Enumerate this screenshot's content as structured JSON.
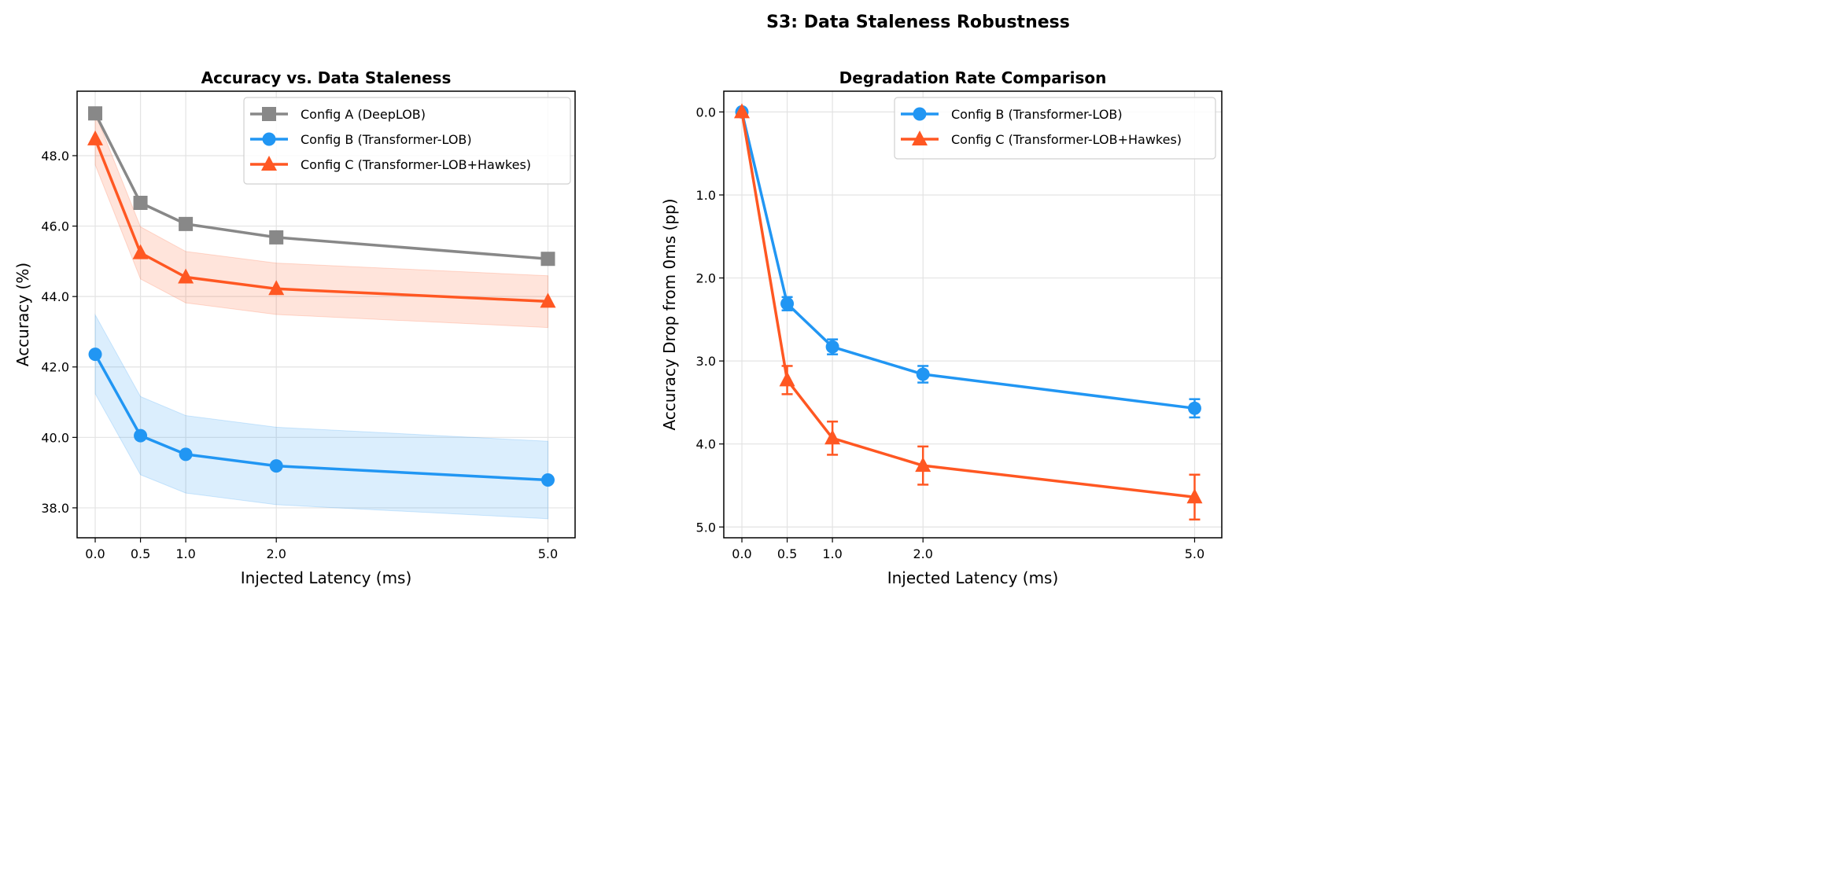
{
  "suptitle": "S3: Data Staleness Robustness",
  "chart_data": [
    {
      "type": "line",
      "title": "Accuracy vs. Data Staleness",
      "xlabel": "Injected Latency (ms)",
      "ylabel": "Accuracy (%)",
      "x": [
        0.0,
        0.5,
        1.0,
        2.0,
        5.0
      ],
      "xticks": [
        "0.0",
        "0.5",
        "1.0",
        "2.0",
        "5.0"
      ],
      "yticks": [
        "38.0",
        "40.0",
        "42.0",
        "44.0",
        "46.0",
        "48.0"
      ],
      "xlim": [
        -0.2,
        5.3
      ],
      "ylim": [
        37.15,
        49.83
      ],
      "grid": true,
      "legend_position": "upper-right",
      "series": [
        {
          "name": "Config A (DeepLOB)",
          "color": "#888888",
          "marker": "square",
          "values": [
            49.2,
            46.66,
            46.06,
            45.68,
            45.07
          ]
        },
        {
          "name": "Config B (Transformer-LOB)",
          "color": "#2196F3",
          "marker": "circle",
          "values": [
            42.36,
            40.05,
            39.52,
            39.19,
            38.79
          ],
          "band_lower": [
            41.24,
            38.94,
            38.42,
            38.09,
            37.69
          ],
          "band_upper": [
            43.48,
            41.16,
            40.62,
            40.29,
            39.89
          ]
        },
        {
          "name": "Config C (Transformer-LOB+Hawkes)",
          "color": "#FF5722",
          "marker": "triangle",
          "values": [
            48.47,
            45.24,
            44.55,
            44.22,
            43.86
          ],
          "band_lower": [
            47.74,
            44.5,
            43.82,
            43.49,
            43.12
          ],
          "band_upper": [
            49.2,
            45.98,
            45.28,
            44.95,
            44.59
          ]
        }
      ]
    },
    {
      "type": "line",
      "title": "Degradation Rate Comparison",
      "xlabel": "Injected Latency (ms)",
      "ylabel": "Accuracy Drop from 0ms (pp)",
      "x": [
        0.0,
        0.5,
        1.0,
        2.0,
        5.0
      ],
      "xticks": [
        "0.0",
        "0.5",
        "1.0",
        "2.0",
        "5.0"
      ],
      "yticks": [
        "0.0",
        "1.0",
        "2.0",
        "3.0",
        "4.0",
        "5.0"
      ],
      "xlim": [
        -0.2,
        5.3
      ],
      "ylim": [
        -0.25,
        5.13
      ],
      "y_inverted": true,
      "grid": true,
      "legend_position": "upper-right",
      "series": [
        {
          "name": "Config B (Transformer-LOB)",
          "color": "#2196F3",
          "marker": "circle",
          "values": [
            0.0,
            2.31,
            2.83,
            3.16,
            3.57
          ],
          "errors": [
            0.0,
            0.08,
            0.09,
            0.1,
            0.11
          ]
        },
        {
          "name": "Config C (Transformer-LOB+Hawkes)",
          "color": "#FF5722",
          "marker": "triangle",
          "values": [
            0.0,
            3.23,
            3.93,
            4.26,
            4.64
          ],
          "errors": [
            0.0,
            0.17,
            0.2,
            0.23,
            0.27
          ]
        }
      ]
    }
  ]
}
